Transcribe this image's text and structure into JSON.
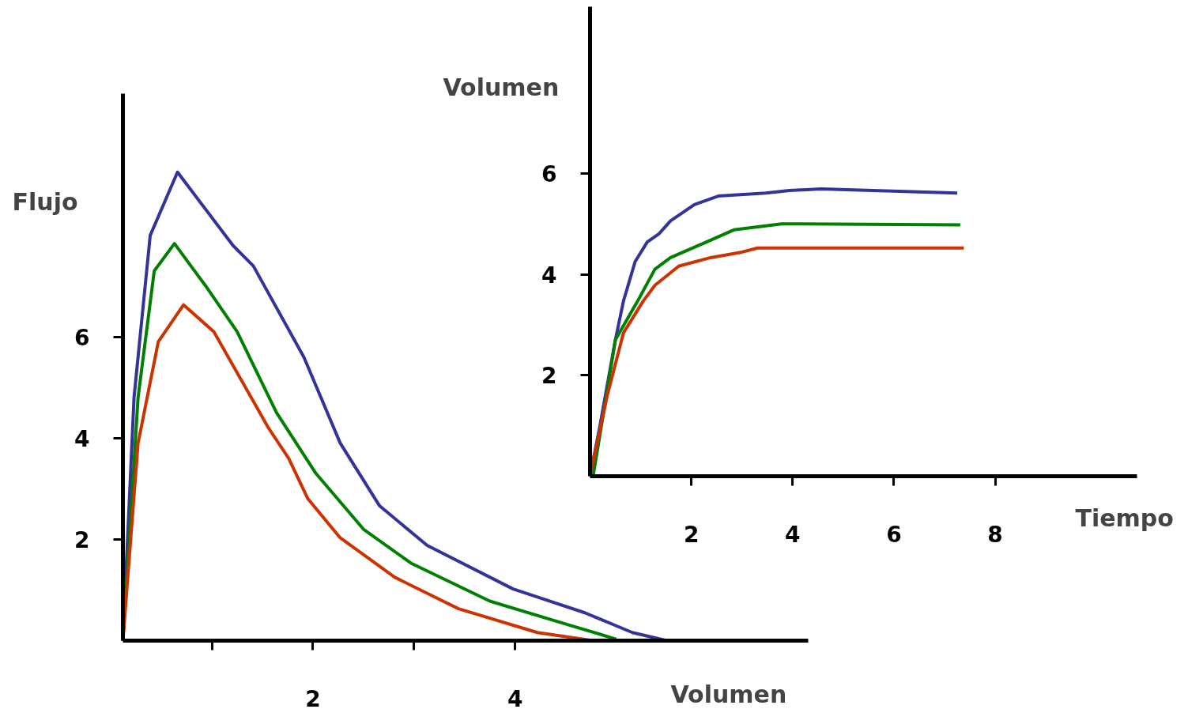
{
  "chart_data": [
    {
      "type": "line",
      "xlabel": "Volumen",
      "ylabel": "Flujo",
      "xlim": [
        0.12,
        6.9
      ],
      "ylim": [
        0,
        10.8
      ],
      "xticks": [
        {
          "value": 1,
          "label": null
        },
        2,
        {
          "value": 3,
          "label": null
        },
        4
      ],
      "yticks": [
        2,
        4,
        6
      ],
      "grid": false,
      "series": [
        {
          "color": "#333399",
          "x": [
            0.12,
            0.23,
            0.39,
            0.66,
            1.21,
            1.41,
            1.91,
            2.27,
            2.66,
            3.13,
            3.98,
            4.69,
            5.16,
            5.5
          ],
          "values": [
            0,
            4.8,
            8.0,
            9.25,
            7.8,
            7.4,
            5.6,
            3.9,
            2.66,
            1.88,
            1.02,
            0.55,
            0.16,
            0
          ]
        },
        {
          "color": "#008000",
          "x": [
            0.12,
            0.27,
            0.43,
            0.63,
            0.94,
            1.25,
            1.64,
            2.03,
            2.5,
            2.97,
            3.75,
            4.53,
            5.0
          ],
          "values": [
            0,
            4.8,
            7.3,
            7.84,
            7.0,
            6.1,
            4.5,
            3.3,
            2.2,
            1.53,
            0.78,
            0.31,
            0.03
          ]
        },
        {
          "color": "#cc3300",
          "x": [
            0.12,
            0.27,
            0.47,
            0.72,
            1.02,
            1.56,
            1.76,
            1.95,
            2.27,
            2.81,
            3.44,
            4.22,
            4.77
          ],
          "values": [
            0,
            3.9,
            5.9,
            6.63,
            6.1,
            4.2,
            3.6,
            2.8,
            2.03,
            1.25,
            0.63,
            0.16,
            0
          ]
        }
      ]
    },
    {
      "type": "line",
      "xlabel": "Tiempo",
      "ylabel": "Volumen",
      "xlim": [
        0,
        10.8
      ],
      "ylim": [
        0,
        9.3
      ],
      "xticks": [
        2,
        4,
        6,
        8
      ],
      "yticks": [
        2,
        4,
        6
      ],
      "grid": false,
      "series": [
        {
          "color": "#333399",
          "x": [
            0,
            0.19,
            0.5,
            0.66,
            0.89,
            1.13,
            1.36,
            1.59,
            2.06,
            2.53,
            3.47,
            3.94,
            4.56,
            7.25
          ],
          "values": [
            0,
            0.97,
            2.7,
            3.47,
            4.25,
            4.64,
            4.8,
            5.06,
            5.38,
            5.55,
            5.61,
            5.66,
            5.69,
            5.61
          ]
        },
        {
          "color": "#008000",
          "x": [
            0.06,
            0.22,
            0.5,
            0.94,
            1.28,
            1.59,
            2.3,
            2.84,
            3.78,
            7.31
          ],
          "values": [
            0,
            0.97,
            2.7,
            3.47,
            4.1,
            4.33,
            4.64,
            4.88,
            5.0,
            4.98
          ]
        },
        {
          "color": "#cc3300",
          "x": [
            0,
            0.34,
            0.66,
            1.05,
            1.28,
            1.75,
            2.38,
            3.0,
            3.31,
            7.38
          ],
          "values": [
            0,
            1.6,
            2.84,
            3.47,
            3.78,
            4.16,
            4.33,
            4.44,
            4.52,
            4.52
          ]
        }
      ]
    }
  ]
}
